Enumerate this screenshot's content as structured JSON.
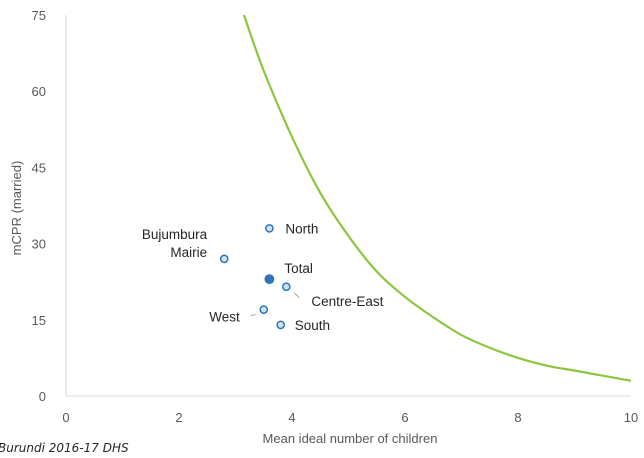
{
  "source_note": "Burundi 2016-17 DHS",
  "chart_data": {
    "type": "scatter",
    "xlabel": "Mean ideal number of children",
    "ylabel": "mCPR (married)",
    "xlim": [
      0,
      10
    ],
    "ylim": [
      0,
      75
    ],
    "x_ticks": [
      0,
      2,
      4,
      6,
      8,
      10
    ],
    "y_ticks": [
      0,
      15,
      30,
      45,
      60,
      75
    ],
    "grid": false,
    "legend": "none",
    "colors": {
      "curve": "#8cc63f",
      "point_fill": "#cfe2f3",
      "point_stroke": "#2e75b6",
      "total_fill": "#2e75b6",
      "axis": "#d9d9d9"
    },
    "points": [
      {
        "label": "North",
        "x": 3.6,
        "y": 33,
        "highlight": false
      },
      {
        "label": "Bujumbura Mairie",
        "x": 2.8,
        "y": 27,
        "highlight": false
      },
      {
        "label": "Total",
        "x": 3.6,
        "y": 23,
        "highlight": true
      },
      {
        "label": "Centre-East",
        "x": 3.9,
        "y": 21.5,
        "highlight": false
      },
      {
        "label": "West",
        "x": 3.5,
        "y": 17,
        "highlight": false
      },
      {
        "label": "South",
        "x": 3.8,
        "y": 14,
        "highlight": false
      }
    ],
    "curve": {
      "x": [
        3.15,
        3.5,
        4,
        4.5,
        5,
        5.5,
        6,
        6.5,
        7,
        7.5,
        8,
        8.5,
        9,
        9.5,
        10
      ],
      "y": [
        75,
        64,
        51,
        40,
        31.5,
        24.5,
        19.5,
        15.5,
        12,
        9.5,
        7.5,
        6,
        5,
        4,
        3
      ]
    }
  }
}
